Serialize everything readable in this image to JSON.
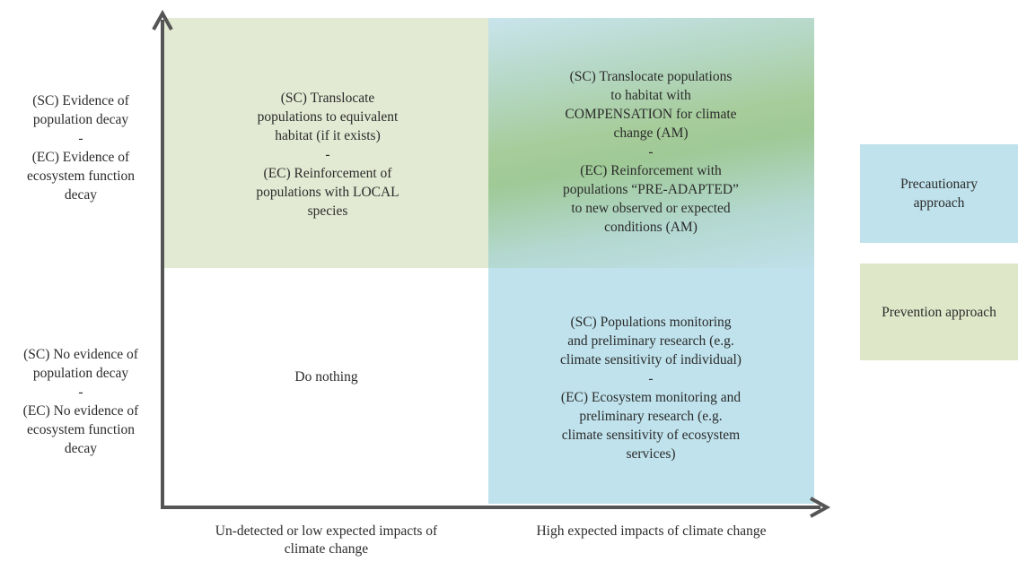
{
  "colors": {
    "precautionary": "#bfe2ec",
    "prevention": "#dfe7c9",
    "axis": "#555555"
  },
  "y_axis": {
    "top": "(SC) Evidence of\npopulation decay\n-\n(EC) Evidence of\necosystem function\ndecay",
    "bottom": "(SC) No evidence of\npopulation decay\n-\n(EC) No evidence of\necosystem function\ndecay"
  },
  "x_axis": {
    "left": "Un-detected or low expected impacts of\nclimate change",
    "right": "High expected impacts of climate change"
  },
  "quadrants": {
    "top_left": "(SC) Translocate\npopulations to equivalent\nhabitat (if it exists)\n-\n(EC) Reinforcement of\npopulations with LOCAL\nspecies",
    "top_right": "(SC) Translocate populations\nto habitat with\nCOMPENSATION for climate\nchange (AM)\n-\n(EC) Reinforcement with\npopulations “PRE-ADAPTED”\nto new observed or expected\nconditions (AM)",
    "bottom_left": "Do nothing",
    "bottom_right": "(SC) Populations monitoring\nand preliminary research (e.g.\nclimate sensitivity of individual)\n-\n(EC) Ecosystem monitoring and\npreliminary research (e.g.\nclimate sensitivity of ecosystem\nservices)"
  },
  "legend": {
    "precautionary": "Precautionary\napproach",
    "prevention": "Prevention approach"
  }
}
